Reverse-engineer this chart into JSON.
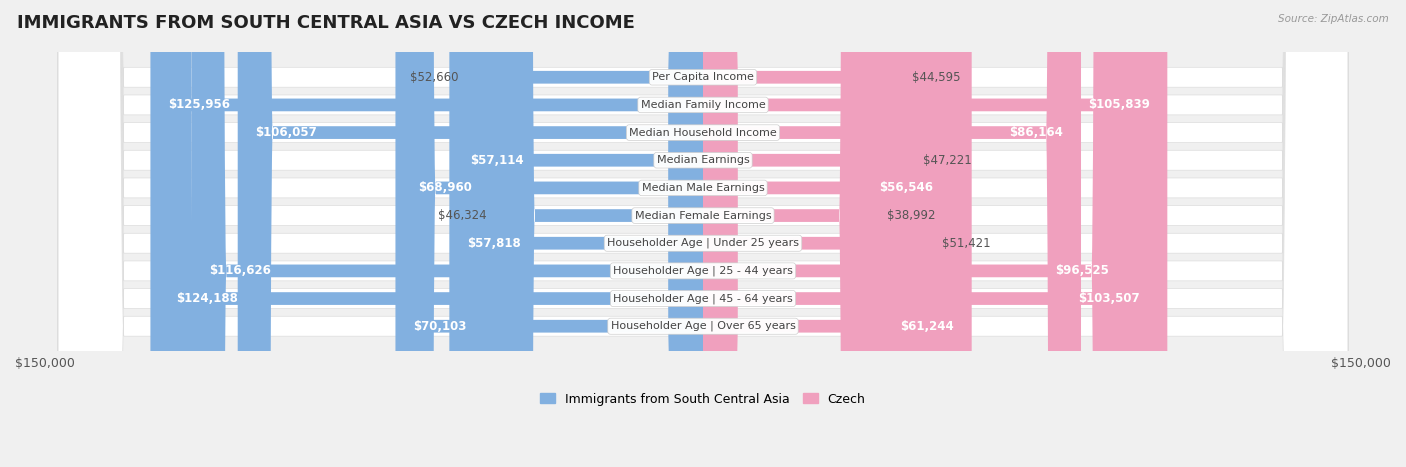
{
  "title": "IMMIGRANTS FROM SOUTH CENTRAL ASIA VS CZECH INCOME",
  "source": "Source: ZipAtlas.com",
  "categories": [
    "Per Capita Income",
    "Median Family Income",
    "Median Household Income",
    "Median Earnings",
    "Median Male Earnings",
    "Median Female Earnings",
    "Householder Age | Under 25 years",
    "Householder Age | 25 - 44 years",
    "Householder Age | 45 - 64 years",
    "Householder Age | Over 65 years"
  ],
  "left_values": [
    52660,
    125956,
    106057,
    57114,
    68960,
    46324,
    57818,
    116626,
    124188,
    70103
  ],
  "right_values": [
    44595,
    105839,
    86164,
    47221,
    56546,
    38992,
    51421,
    96525,
    103507,
    61244
  ],
  "left_labels": [
    "$52,660",
    "$125,956",
    "$106,057",
    "$57,114",
    "$68,960",
    "$46,324",
    "$57,818",
    "$116,626",
    "$124,188",
    "$70,103"
  ],
  "right_labels": [
    "$44,595",
    "$105,839",
    "$86,164",
    "$47,221",
    "$56,546",
    "$38,992",
    "$51,421",
    "$96,525",
    "$103,507",
    "$61,244"
  ],
  "left_color": "#82b0e0",
  "right_color": "#f0a0be",
  "max_value": 150000,
  "x_tick_label_left": "$150,000",
  "x_tick_label_right": "$150,000",
  "legend_left": "Immigrants from South Central Asia",
  "legend_right": "Czech",
  "bg_color": "#f0f0f0",
  "row_bg_color": "#ffffff",
  "title_fontsize": 13,
  "label_fontsize": 8.5,
  "category_fontsize": 8,
  "inside_label_threshold": 55000
}
